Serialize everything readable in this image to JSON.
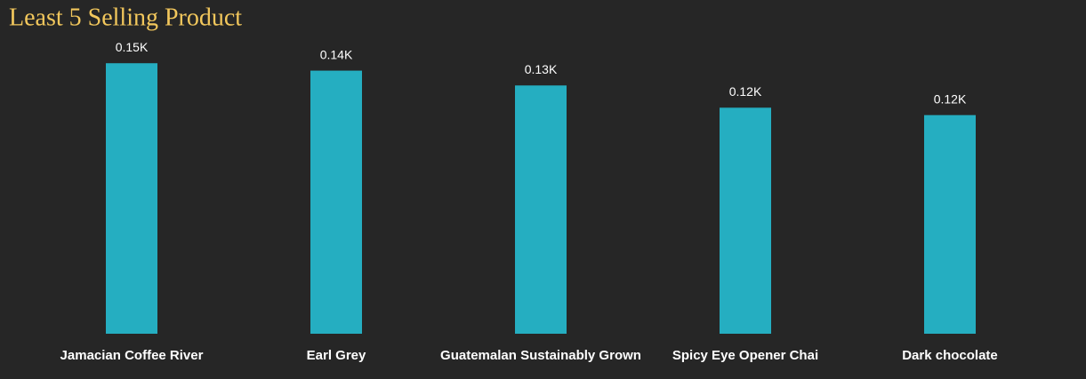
{
  "chart_data": {
    "type": "bar",
    "title": "Least 5 Selling Product",
    "categories": [
      "Jamacian Coffee River",
      "Earl Grey",
      "Guatemalan Sustainably Grown",
      "Spicy Eye Opener Chai",
      "Dark chocolate"
    ],
    "values": [
      146,
      142,
      134,
      122,
      118
    ],
    "value_labels": [
      "0.15K",
      "0.14K",
      "0.13K",
      "0.12K",
      "0.12K"
    ],
    "color": "#25aec1",
    "ylim": [
      0,
      160
    ]
  }
}
